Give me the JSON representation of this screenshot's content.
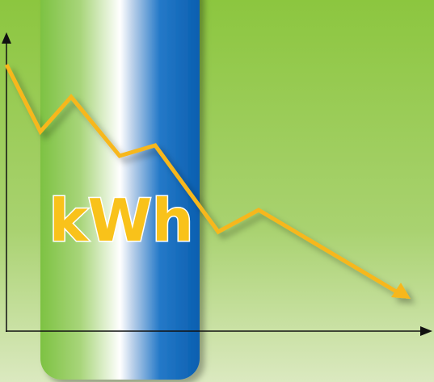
{
  "label": "kWh"
}
